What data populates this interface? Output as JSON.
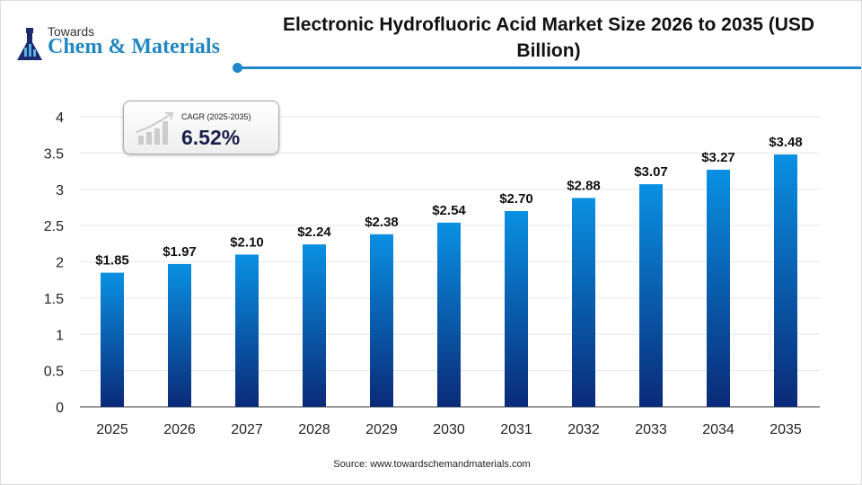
{
  "brand": {
    "line1": "Towards",
    "line2": "Chem & Materials"
  },
  "cagr": {
    "label": "CAGR (2025-2035)",
    "value": "6.52%"
  },
  "source": "Source: www.towardschemandmaterials.com",
  "colors": {
    "bar_top": "#0a90e2",
    "bar_bottom": "#0a2a78",
    "accent": "#1f86c9"
  },
  "chart_data": {
    "type": "bar",
    "title": "Electronic Hydrofluoric Acid Market Size 2026 to 2035 (USD Billion)",
    "categories": [
      "2025",
      "2026",
      "2027",
      "2028",
      "2029",
      "2030",
      "2031",
      "2032",
      "2033",
      "2034",
      "2035"
    ],
    "values": [
      1.85,
      1.97,
      2.1,
      2.24,
      2.38,
      2.54,
      2.7,
      2.88,
      3.07,
      3.27,
      3.48
    ],
    "data_labels": [
      "$1.85",
      "$1.97",
      "$2.10",
      "$2.24",
      "$2.38",
      "$2.54",
      "$2.70",
      "$2.88",
      "$3.07",
      "$3.27",
      "$3.48"
    ],
    "ylim": [
      0,
      4
    ],
    "yticks": [
      "0",
      "0.5",
      "1",
      "1.5",
      "2",
      "2.5",
      "3",
      "3.5",
      "4"
    ],
    "grid": true,
    "xlabel": "",
    "ylabel": ""
  }
}
